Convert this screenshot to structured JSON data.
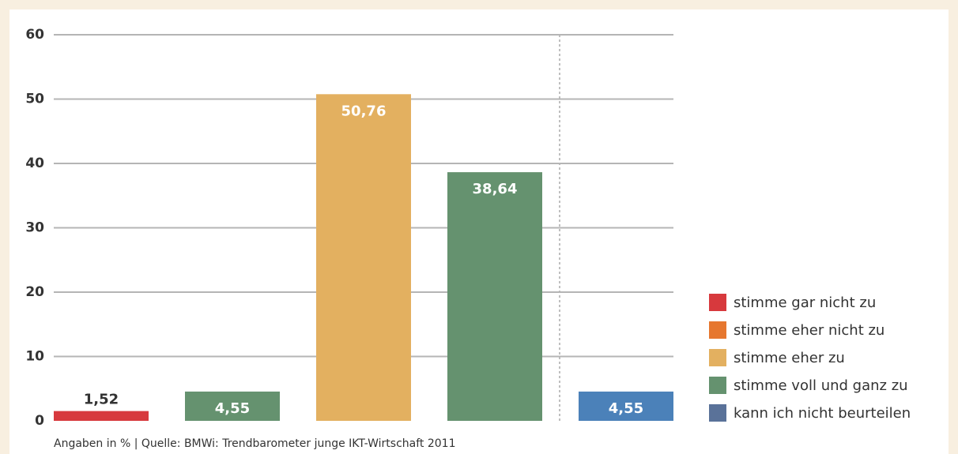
{
  "chart_data": {
    "type": "bar",
    "categories": [
      null,
      null,
      null,
      null,
      null
    ],
    "values": [
      1.52,
      4.55,
      50.76,
      38.64,
      4.55
    ],
    "value_labels": [
      "1,52",
      "4,55",
      "50,76",
      "38,64",
      "4,55"
    ],
    "colors": [
      "#d7393d",
      "#65926f",
      "#e3b060",
      "#65926f",
      "#4b81b9"
    ],
    "legend": [
      {
        "name": "stimme gar nicht zu",
        "color": "#d7393d"
      },
      {
        "name": "stimme eher nicht zu",
        "color": "#e6772f"
      },
      {
        "name": "stimme eher zu",
        "color": "#e3b060"
      },
      {
        "name": "stimme voll und ganz zu",
        "color": "#65926f"
      },
      {
        "name": "kann ich nicht beurteilen",
        "color": "#5a7299"
      }
    ],
    "ylim": [
      0,
      60
    ],
    "yticks": [
      0,
      10,
      20,
      30,
      40,
      50,
      60
    ],
    "grid": true,
    "note": "Angaben in % | Quelle: BMWi: Trendbarometer junge IKT-Wirtschaft 2011"
  }
}
